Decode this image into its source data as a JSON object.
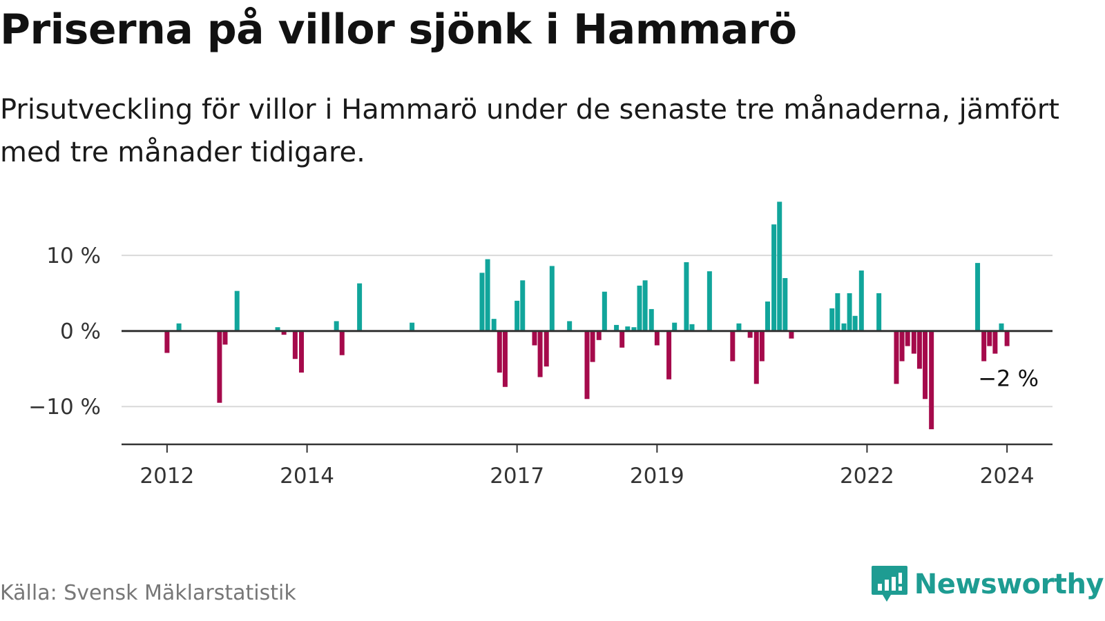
{
  "header": {
    "title": "Priserna på villor sjönk i Hammarö",
    "subtitle": "Prisutveckling för villor i Hammarö under de senaste tre månaderna, jämfört med tre månader tidigare."
  },
  "footer": {
    "source": "Källa: Svensk Mäklarstatistik",
    "brand": "Newsworthy"
  },
  "colors": {
    "positive": "#11a59b",
    "negative": "#a50a4b",
    "grid": "#d9d9d9",
    "axis": "#333333",
    "brand": "#1e9c92"
  },
  "chart_data": {
    "type": "bar",
    "title": "Priserna på villor sjönk i Hammarö",
    "xlabel": "",
    "ylabel": "",
    "ylim": [
      -15,
      17.5
    ],
    "x_range": [
      2011.35,
      2024.65
    ],
    "yticks": [
      {
        "value": 10,
        "label": "10 %"
      },
      {
        "value": 0,
        "label": "0 %"
      },
      {
        "value": -10,
        "label": "−10 %"
      }
    ],
    "xticks": [
      {
        "value": 2012,
        "label": "2012"
      },
      {
        "value": 2014,
        "label": "2014"
      },
      {
        "value": 2017,
        "label": "2017"
      },
      {
        "value": 2019,
        "label": "2019"
      },
      {
        "value": 2022,
        "label": "2022"
      },
      {
        "value": 2024,
        "label": "2024"
      }
    ],
    "grid": true,
    "annotation": {
      "label": "−2 %",
      "value": -2
    },
    "series": [
      {
        "name": "Prisutveckling",
        "points": [
          {
            "x": 2012.0,
            "value": -2.9
          },
          {
            "x": 2012.17,
            "value": 1.0
          },
          {
            "x": 2012.75,
            "value": -9.5
          },
          {
            "x": 2012.83,
            "value": -1.8
          },
          {
            "x": 2013.0,
            "value": 5.3
          },
          {
            "x": 2013.58,
            "value": 0.5
          },
          {
            "x": 2013.67,
            "value": -0.5
          },
          {
            "x": 2013.83,
            "value": -3.7
          },
          {
            "x": 2013.92,
            "value": -5.5
          },
          {
            "x": 2014.42,
            "value": 1.3
          },
          {
            "x": 2014.5,
            "value": -3.2
          },
          {
            "x": 2014.75,
            "value": 6.3
          },
          {
            "x": 2015.5,
            "value": 1.1
          },
          {
            "x": 2016.5,
            "value": 7.7
          },
          {
            "x": 2016.58,
            "value": 9.5
          },
          {
            "x": 2016.67,
            "value": 1.6
          },
          {
            "x": 2016.75,
            "value": -5.5
          },
          {
            "x": 2016.83,
            "value": -7.4
          },
          {
            "x": 2017.0,
            "value": 4.0
          },
          {
            "x": 2017.08,
            "value": 6.7
          },
          {
            "x": 2017.25,
            "value": -1.9
          },
          {
            "x": 2017.33,
            "value": -6.1
          },
          {
            "x": 2017.42,
            "value": -4.7
          },
          {
            "x": 2017.5,
            "value": 8.6
          },
          {
            "x": 2017.75,
            "value": 1.3
          },
          {
            "x": 2018.0,
            "value": -9.0
          },
          {
            "x": 2018.08,
            "value": -4.1
          },
          {
            "x": 2018.17,
            "value": -1.2
          },
          {
            "x": 2018.25,
            "value": 5.2
          },
          {
            "x": 2018.42,
            "value": 0.8
          },
          {
            "x": 2018.5,
            "value": -2.2
          },
          {
            "x": 2018.58,
            "value": 0.6
          },
          {
            "x": 2018.67,
            "value": 0.5
          },
          {
            "x": 2018.75,
            "value": 6.0
          },
          {
            "x": 2018.83,
            "value": 6.7
          },
          {
            "x": 2018.92,
            "value": 2.9
          },
          {
            "x": 2019.0,
            "value": -1.9
          },
          {
            "x": 2019.17,
            "value": -6.4
          },
          {
            "x": 2019.25,
            "value": 1.1
          },
          {
            "x": 2019.42,
            "value": 9.1
          },
          {
            "x": 2019.5,
            "value": 0.9
          },
          {
            "x": 2019.75,
            "value": 7.9
          },
          {
            "x": 2020.08,
            "value": -4.0
          },
          {
            "x": 2020.17,
            "value": 1.0
          },
          {
            "x": 2020.33,
            "value": -0.9
          },
          {
            "x": 2020.42,
            "value": -7.0
          },
          {
            "x": 2020.5,
            "value": -4.0
          },
          {
            "x": 2020.58,
            "value": 3.9
          },
          {
            "x": 2020.67,
            "value": 14.1
          },
          {
            "x": 2020.75,
            "value": 17.1
          },
          {
            "x": 2020.83,
            "value": 7.0
          },
          {
            "x": 2020.92,
            "value": -1.0
          },
          {
            "x": 2021.5,
            "value": 3.0
          },
          {
            "x": 2021.58,
            "value": 5.0
          },
          {
            "x": 2021.67,
            "value": 1.0
          },
          {
            "x": 2021.75,
            "value": 5.0
          },
          {
            "x": 2021.83,
            "value": 2.0
          },
          {
            "x": 2021.92,
            "value": 8.0
          },
          {
            "x": 2022.17,
            "value": 5.0
          },
          {
            "x": 2022.42,
            "value": -7.0
          },
          {
            "x": 2022.5,
            "value": -4.0
          },
          {
            "x": 2022.58,
            "value": -2.0
          },
          {
            "x": 2022.67,
            "value": -3.0
          },
          {
            "x": 2022.75,
            "value": -5.0
          },
          {
            "x": 2022.83,
            "value": -9.0
          },
          {
            "x": 2022.92,
            "value": -13.0
          },
          {
            "x": 2023.58,
            "value": 9.0
          },
          {
            "x": 2023.67,
            "value": -4.0
          },
          {
            "x": 2023.75,
            "value": -2.0
          },
          {
            "x": 2023.83,
            "value": -3.0
          },
          {
            "x": 2023.92,
            "value": 1.0
          },
          {
            "x": 2024.0,
            "value": -2.0
          }
        ]
      }
    ]
  }
}
